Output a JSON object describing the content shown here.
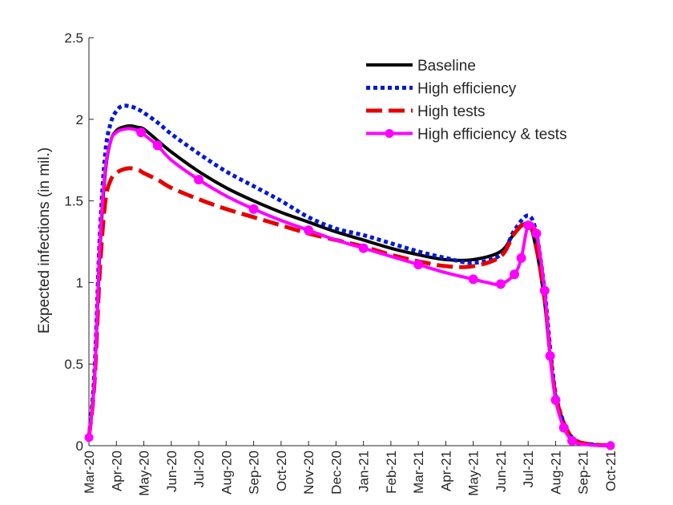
{
  "chart_data": {
    "type": "line",
    "title": "",
    "xlabel": "",
    "ylabel": "Expected infections (in mil.)",
    "ylim": [
      0,
      2.5
    ],
    "yticks": [
      0,
      0.5,
      1,
      1.5,
      2,
      2.5
    ],
    "ytick_labels": [
      "0",
      "0.5",
      "1",
      "1.5",
      "2",
      "2.5"
    ],
    "xlim": [
      0,
      19
    ],
    "xtick_labels": [
      "Mar-20",
      "Apr-20",
      "May-20",
      "Jun-20",
      "Jul-20",
      "Aug-20",
      "Sep-20",
      "Oct-20",
      "Nov-20",
      "Dec-20",
      "Jan-21",
      "Feb-21",
      "Mar-21",
      "Apr-21",
      "May-21",
      "Jun-21",
      "Jul-21",
      "Aug-21",
      "Sep-21",
      "Oct-21"
    ],
    "legend_position": "top-right",
    "grid": false,
    "series": [
      {
        "name": "Baseline",
        "color": "#000000",
        "style": "solid",
        "x": [
          0,
          0.2,
          0.4,
          0.6,
          0.8,
          1.0,
          1.2,
          1.5,
          1.8,
          2.0,
          2.5,
          3,
          4,
          5,
          6,
          7,
          8,
          9,
          10,
          11,
          12,
          13,
          14,
          15,
          15.5,
          16,
          16.3,
          16.6,
          16.8,
          17.0,
          17.3,
          17.6,
          17.9,
          18.2,
          18.5,
          19
        ],
        "y": [
          0.05,
          0.4,
          1.2,
          1.68,
          1.87,
          1.93,
          1.95,
          1.96,
          1.95,
          1.94,
          1.87,
          1.8,
          1.68,
          1.58,
          1.5,
          1.43,
          1.37,
          1.31,
          1.26,
          1.21,
          1.17,
          1.14,
          1.14,
          1.19,
          1.3,
          1.36,
          1.2,
          0.88,
          0.55,
          0.3,
          0.14,
          0.05,
          0.02,
          0.01,
          0.005,
          0.0
        ]
      },
      {
        "name": "High efficiency",
        "color": "#0018d6",
        "style": "dotted",
        "x": [
          0,
          0.2,
          0.4,
          0.6,
          0.8,
          1.0,
          1.2,
          1.5,
          1.8,
          2.0,
          2.5,
          3,
          4,
          5,
          6,
          7,
          8,
          9,
          10,
          11,
          12,
          13,
          14,
          15,
          15.5,
          16,
          16.3,
          16.6,
          16.8,
          17.0,
          17.3,
          17.6,
          17.9,
          18.2,
          18.5,
          19
        ],
        "y": [
          0.05,
          0.45,
          1.3,
          1.8,
          1.98,
          2.05,
          2.08,
          2.08,
          2.06,
          2.04,
          1.98,
          1.91,
          1.79,
          1.68,
          1.59,
          1.5,
          1.4,
          1.33,
          1.29,
          1.24,
          1.19,
          1.15,
          1.12,
          1.17,
          1.32,
          1.41,
          1.3,
          0.95,
          0.6,
          0.32,
          0.14,
          0.05,
          0.02,
          0.01,
          0.005,
          0.0
        ]
      },
      {
        "name": "High tests",
        "color": "#e60000",
        "style": "dashed",
        "x": [
          0,
          0.2,
          0.4,
          0.6,
          0.8,
          1.0,
          1.2,
          1.5,
          1.8,
          2.0,
          2.5,
          3,
          4,
          5,
          6,
          7,
          8,
          9,
          10,
          11,
          12,
          13,
          14,
          15,
          15.5,
          16,
          16.3,
          16.6,
          16.8,
          17.0,
          17.3,
          17.6,
          17.9,
          18.2,
          18.5,
          19
        ],
        "y": [
          0.05,
          0.38,
          1.08,
          1.5,
          1.63,
          1.67,
          1.69,
          1.7,
          1.69,
          1.67,
          1.63,
          1.58,
          1.51,
          1.45,
          1.4,
          1.35,
          1.3,
          1.26,
          1.22,
          1.17,
          1.13,
          1.1,
          1.1,
          1.16,
          1.3,
          1.37,
          1.22,
          0.9,
          0.57,
          0.31,
          0.14,
          0.05,
          0.02,
          0.01,
          0.005,
          0.0
        ]
      },
      {
        "name": "High efficiency & tests",
        "color": "#ff00ff",
        "style": "solid-markers",
        "x": [
          0,
          0.2,
          0.4,
          0.6,
          0.8,
          1.0,
          1.3,
          1.6,
          1.9,
          2.2,
          2.5,
          3,
          4,
          5,
          6,
          7,
          8,
          9,
          10,
          11,
          12,
          13,
          14,
          14.5,
          15,
          15.5,
          15.75,
          16,
          16.3,
          16.6,
          16.8,
          17.0,
          17.3,
          17.6,
          17.9,
          18.2,
          18.5,
          19
        ],
        "y": [
          0.05,
          0.4,
          1.25,
          1.7,
          1.87,
          1.92,
          1.94,
          1.94,
          1.92,
          1.88,
          1.84,
          1.75,
          1.63,
          1.53,
          1.45,
          1.38,
          1.32,
          1.26,
          1.21,
          1.16,
          1.11,
          1.06,
          1.02,
          1.0,
          0.99,
          1.05,
          1.15,
          1.35,
          1.3,
          0.95,
          0.55,
          0.28,
          0.11,
          0.03,
          0.01,
          0.005,
          0.002,
          0.0
        ]
      }
    ]
  }
}
